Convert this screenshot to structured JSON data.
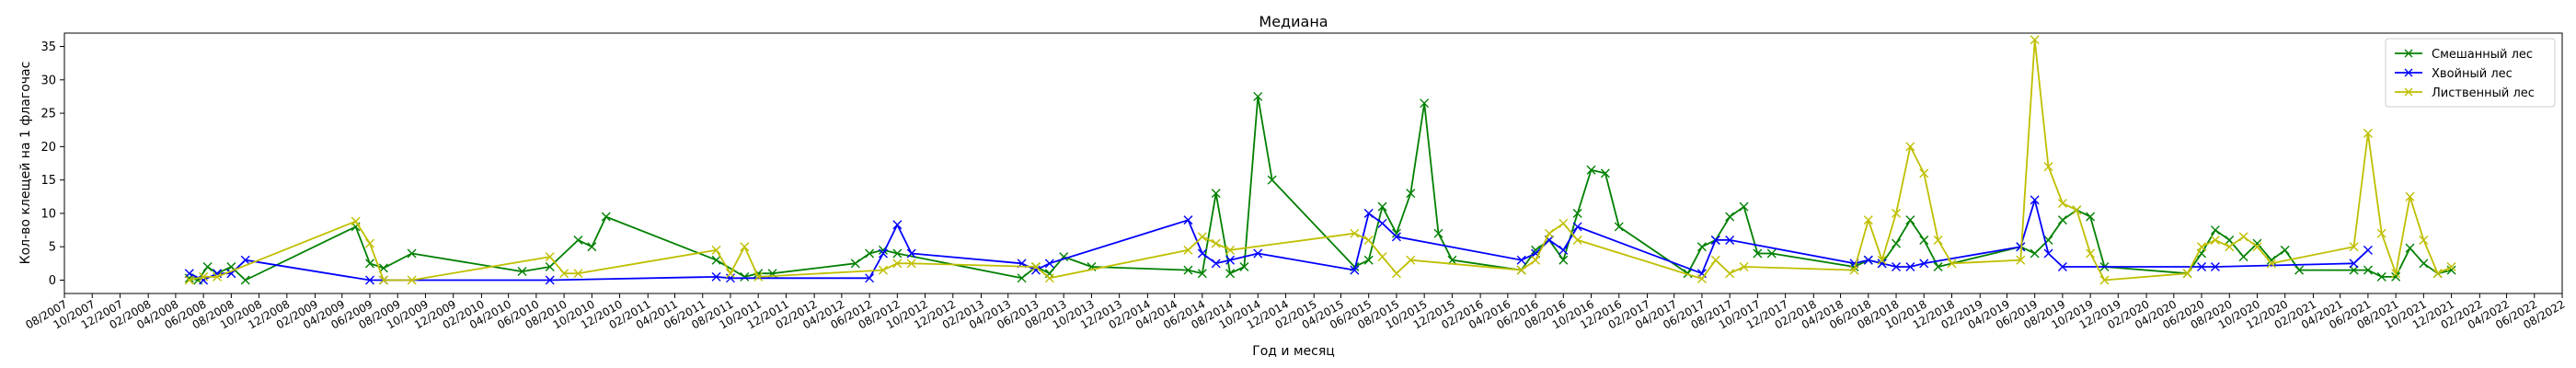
{
  "chart_data": {
    "type": "line",
    "title": "Медиана",
    "xlabel": "Год и месяц",
    "ylabel": "Кол-во клещей на 1 флагочас",
    "xlim": [
      "2007-08",
      "2022-08"
    ],
    "ylim": [
      -2,
      37
    ],
    "yticks": [
      0,
      5,
      10,
      15,
      20,
      25,
      30,
      35
    ],
    "xticks": [
      "08/2007",
      "10/2007",
      "12/2007",
      "02/2008",
      "04/2008",
      "06/2008",
      "08/2008",
      "10/2008",
      "12/2008",
      "02/2009",
      "04/2009",
      "06/2009",
      "08/2009",
      "10/2009",
      "12/2009",
      "02/2010",
      "04/2010",
      "06/2010",
      "08/2010",
      "10/2010",
      "12/2010",
      "02/2011",
      "04/2011",
      "06/2011",
      "08/2011",
      "10/2011",
      "12/2011",
      "02/2012",
      "04/2012",
      "06/2012",
      "08/2012",
      "10/2012",
      "12/2012",
      "02/2013",
      "04/2013",
      "06/2013",
      "08/2013",
      "10/2013",
      "12/2013",
      "02/2014",
      "04/2014",
      "06/2014",
      "08/2014",
      "10/2014",
      "12/2014",
      "02/2015",
      "04/2015",
      "06/2015",
      "08/2015",
      "10/2015",
      "12/2015",
      "02/2016",
      "04/2016",
      "06/2016",
      "08/2016",
      "10/2016",
      "12/2016",
      "02/2017",
      "04/2017",
      "06/2017",
      "08/2017",
      "10/2017",
      "12/2017",
      "02/2018",
      "04/2018",
      "06/2018",
      "08/2018",
      "10/2018",
      "12/2018",
      "02/2019",
      "04/2019",
      "06/2019",
      "08/2019",
      "10/2019",
      "12/2019",
      "02/2020",
      "04/2020",
      "06/2020",
      "08/2020",
      "10/2020",
      "12/2020",
      "02/2021",
      "04/2021",
      "06/2021",
      "08/2021",
      "10/2021",
      "12/2021",
      "02/2022",
      "04/2022",
      "06/2022",
      "08/2022"
    ],
    "legend_position": "top-right",
    "grid": false,
    "series": [
      {
        "name": "Смешанный лес",
        "color": "#008000",
        "points": [
          [
            "2008-05-01",
            0.3
          ],
          [
            "2008-05-20",
            0
          ],
          [
            "2008-06-10",
            2
          ],
          [
            "2008-07-01",
            1
          ],
          [
            "2008-08-01",
            2
          ],
          [
            "2008-09-01",
            0
          ],
          [
            "2009-05-01",
            8
          ],
          [
            "2009-06-01",
            2.5
          ],
          [
            "2009-07-01",
            1.8
          ],
          [
            "2009-09-01",
            4
          ],
          [
            "2010-05-01",
            1.3
          ],
          [
            "2010-07-01",
            2
          ],
          [
            "2010-09-01",
            6
          ],
          [
            "2010-10-01",
            5
          ],
          [
            "2010-11-01",
            9.5
          ],
          [
            "2011-07-01",
            3
          ],
          [
            "2011-09-01",
            0.5
          ],
          [
            "2011-10-01",
            1
          ],
          [
            "2011-11-01",
            1
          ],
          [
            "2012-05-01",
            2.5
          ],
          [
            "2012-06-01",
            4
          ],
          [
            "2012-07-01",
            4.5
          ],
          [
            "2012-08-01",
            4
          ],
          [
            "2013-05-01",
            0.3
          ],
          [
            "2013-06-01",
            2
          ],
          [
            "2013-07-01",
            1
          ],
          [
            "2013-08-01",
            3.5
          ],
          [
            "2013-10-01",
            2
          ],
          [
            "2014-05-01",
            1.5
          ],
          [
            "2014-06-01",
            1
          ],
          [
            "2014-07-01",
            13
          ],
          [
            "2014-08-01",
            1
          ],
          [
            "2014-09-01",
            2
          ],
          [
            "2014-10-01",
            27.5
          ],
          [
            "2014-11-01",
            15
          ],
          [
            "2015-05-01",
            2
          ],
          [
            "2015-06-01",
            3
          ],
          [
            "2015-07-01",
            11
          ],
          [
            "2015-08-01",
            7
          ],
          [
            "2015-09-01",
            13
          ],
          [
            "2015-10-01",
            26.5
          ],
          [
            "2015-11-01",
            7
          ],
          [
            "2015-12-01",
            3
          ],
          [
            "2016-05-01",
            1.5
          ],
          [
            "2016-06-01",
            4.5
          ],
          [
            "2016-07-01",
            6
          ],
          [
            "2016-08-01",
            3
          ],
          [
            "2016-09-01",
            10
          ],
          [
            "2016-10-01",
            16.5
          ],
          [
            "2016-11-01",
            16
          ],
          [
            "2016-12-01",
            8
          ],
          [
            "2017-05-01",
            1
          ],
          [
            "2017-06-01",
            5
          ],
          [
            "2017-07-01",
            6
          ],
          [
            "2017-08-01",
            9.5
          ],
          [
            "2017-09-01",
            11
          ],
          [
            "2017-10-01",
            4
          ],
          [
            "2017-11-01",
            4
          ],
          [
            "2018-05-01",
            2
          ],
          [
            "2018-06-01",
            3
          ],
          [
            "2018-07-01",
            2.5
          ],
          [
            "2018-08-01",
            5.5
          ],
          [
            "2018-09-01",
            9
          ],
          [
            "2018-10-01",
            6
          ],
          [
            "2018-11-01",
            2
          ],
          [
            "2019-05-01",
            5
          ],
          [
            "2019-06-01",
            4
          ],
          [
            "2019-07-01",
            6
          ],
          [
            "2019-08-01",
            9
          ],
          [
            "2019-09-01",
            10.5
          ],
          [
            "2019-10-01",
            9.5
          ],
          [
            "2019-11-01",
            2
          ],
          [
            "2020-05-01",
            1
          ],
          [
            "2020-06-01",
            4
          ],
          [
            "2020-07-01",
            7.5
          ],
          [
            "2020-08-01",
            6
          ],
          [
            "2020-09-01",
            3.5
          ],
          [
            "2020-10-01",
            5.5
          ],
          [
            "2020-11-01",
            3
          ],
          [
            "2020-12-01",
            4.5
          ],
          [
            "2021-01-01",
            1.5
          ],
          [
            "2021-05-01",
            1.5
          ],
          [
            "2021-06-01",
            1.5
          ],
          [
            "2021-07-01",
            0.5
          ],
          [
            "2021-08-01",
            0.5
          ],
          [
            "2021-09-01",
            4.8
          ],
          [
            "2021-10-01",
            2.5
          ],
          [
            "2021-11-01",
            1
          ],
          [
            "2021-12-01",
            1.5
          ]
        ]
      },
      {
        "name": "Хвойный лес",
        "color": "#0000ff",
        "points": [
          [
            "2008-05-01",
            1
          ],
          [
            "2008-06-01",
            0
          ],
          [
            "2008-07-01",
            1
          ],
          [
            "2008-08-01",
            1
          ],
          [
            "2008-09-01",
            3
          ],
          [
            "2009-06-01",
            0
          ],
          [
            "2009-07-01",
            0
          ],
          [
            "2010-07-01",
            0
          ],
          [
            "2011-07-01",
            0.5
          ],
          [
            "2011-08-01",
            0.3
          ],
          [
            "2012-06-01",
            0.3
          ],
          [
            "2012-07-01",
            4
          ],
          [
            "2012-08-01",
            8.3
          ],
          [
            "2012-09-01",
            4
          ],
          [
            "2013-05-01",
            2.5
          ],
          [
            "2013-06-01",
            1.5
          ],
          [
            "2013-07-01",
            2.5
          ],
          [
            "2014-05-01",
            9
          ],
          [
            "2014-06-01",
            4
          ],
          [
            "2014-07-01",
            2.5
          ],
          [
            "2014-08-01",
            3
          ],
          [
            "2014-10-01",
            4
          ],
          [
            "2015-05-01",
            1.5
          ],
          [
            "2015-06-01",
            10
          ],
          [
            "2015-07-01",
            8.5
          ],
          [
            "2015-08-01",
            6.5
          ],
          [
            "2016-05-01",
            3
          ],
          [
            "2016-06-01",
            4
          ],
          [
            "2016-07-01",
            6
          ],
          [
            "2016-08-01",
            4.5
          ],
          [
            "2016-09-01",
            8
          ],
          [
            "2017-06-01",
            1
          ],
          [
            "2017-07-01",
            6
          ],
          [
            "2017-08-01",
            6
          ],
          [
            "2018-05-01",
            2.5
          ],
          [
            "2018-06-01",
            3
          ],
          [
            "2018-07-01",
            2.5
          ],
          [
            "2018-08-01",
            2
          ],
          [
            "2018-09-01",
            2
          ],
          [
            "2018-10-01",
            2.5
          ],
          [
            "2019-05-01",
            5
          ],
          [
            "2019-06-01",
            12
          ],
          [
            "2019-07-01",
            4
          ],
          [
            "2019-08-01",
            2
          ],
          [
            "2020-06-01",
            2
          ],
          [
            "2020-07-01",
            2
          ],
          [
            "2021-05-01",
            2.5
          ],
          [
            "2021-06-01",
            4.5
          ]
        ]
      },
      {
        "name": "Лиственный лес",
        "color": "#bfbf00",
        "points": [
          [
            "2008-05-01",
            0
          ],
          [
            "2008-06-01",
            0.5
          ],
          [
            "2008-07-01",
            0.5
          ],
          [
            "2009-05-01",
            8.8
          ],
          [
            "2009-06-01",
            5.5
          ],
          [
            "2009-07-01",
            0
          ],
          [
            "2009-09-01",
            0
          ],
          [
            "2010-07-01",
            3.5
          ],
          [
            "2010-08-01",
            1
          ],
          [
            "2010-09-01",
            1
          ],
          [
            "2011-07-01",
            4.5
          ],
          [
            "2011-08-01",
            1
          ],
          [
            "2011-09-01",
            5
          ],
          [
            "2011-10-01",
            0.5
          ],
          [
            "2012-07-01",
            1.5
          ],
          [
            "2012-08-01",
            2.5
          ],
          [
            "2012-09-01",
            2.5
          ],
          [
            "2013-06-01",
            2
          ],
          [
            "2013-07-01",
            0.3
          ],
          [
            "2014-05-01",
            4.5
          ],
          [
            "2014-06-01",
            6.5
          ],
          [
            "2014-07-01",
            5.5
          ],
          [
            "2014-08-01",
            4.5
          ],
          [
            "2015-05-01",
            7
          ],
          [
            "2015-06-01",
            6
          ],
          [
            "2015-07-01",
            3.5
          ],
          [
            "2015-08-01",
            1
          ],
          [
            "2015-09-01",
            3
          ],
          [
            "2016-05-01",
            1.5
          ],
          [
            "2016-06-01",
            3
          ],
          [
            "2016-07-01",
            7
          ],
          [
            "2016-08-01",
            8.5
          ],
          [
            "2016-09-01",
            6
          ],
          [
            "2017-06-01",
            0.2
          ],
          [
            "2017-07-01",
            3
          ],
          [
            "2017-08-01",
            1
          ],
          [
            "2017-09-01",
            2
          ],
          [
            "2018-05-01",
            1.5
          ],
          [
            "2018-06-01",
            9
          ],
          [
            "2018-07-01",
            3
          ],
          [
            "2018-08-01",
            10
          ],
          [
            "2018-09-01",
            20
          ],
          [
            "2018-10-01",
            16
          ],
          [
            "2018-11-01",
            6
          ],
          [
            "2018-12-01",
            2.5
          ],
          [
            "2019-05-01",
            3
          ],
          [
            "2019-06-01",
            36
          ],
          [
            "2019-07-01",
            17
          ],
          [
            "2019-08-01",
            11.5
          ],
          [
            "2019-09-01",
            10.5
          ],
          [
            "2019-10-01",
            4
          ],
          [
            "2019-11-01",
            0
          ],
          [
            "2020-05-01",
            1
          ],
          [
            "2020-06-01",
            5
          ],
          [
            "2020-07-01",
            6
          ],
          [
            "2020-08-01",
            5
          ],
          [
            "2020-09-01",
            6.5
          ],
          [
            "2020-10-01",
            5
          ],
          [
            "2020-11-01",
            2.5
          ],
          [
            "2021-05-01",
            5
          ],
          [
            "2021-06-01",
            22
          ],
          [
            "2021-07-01",
            7
          ],
          [
            "2021-08-01",
            1
          ],
          [
            "2021-09-01",
            12.5
          ],
          [
            "2021-10-01",
            6
          ],
          [
            "2021-11-01",
            1
          ],
          [
            "2021-12-01",
            2
          ]
        ]
      }
    ]
  }
}
